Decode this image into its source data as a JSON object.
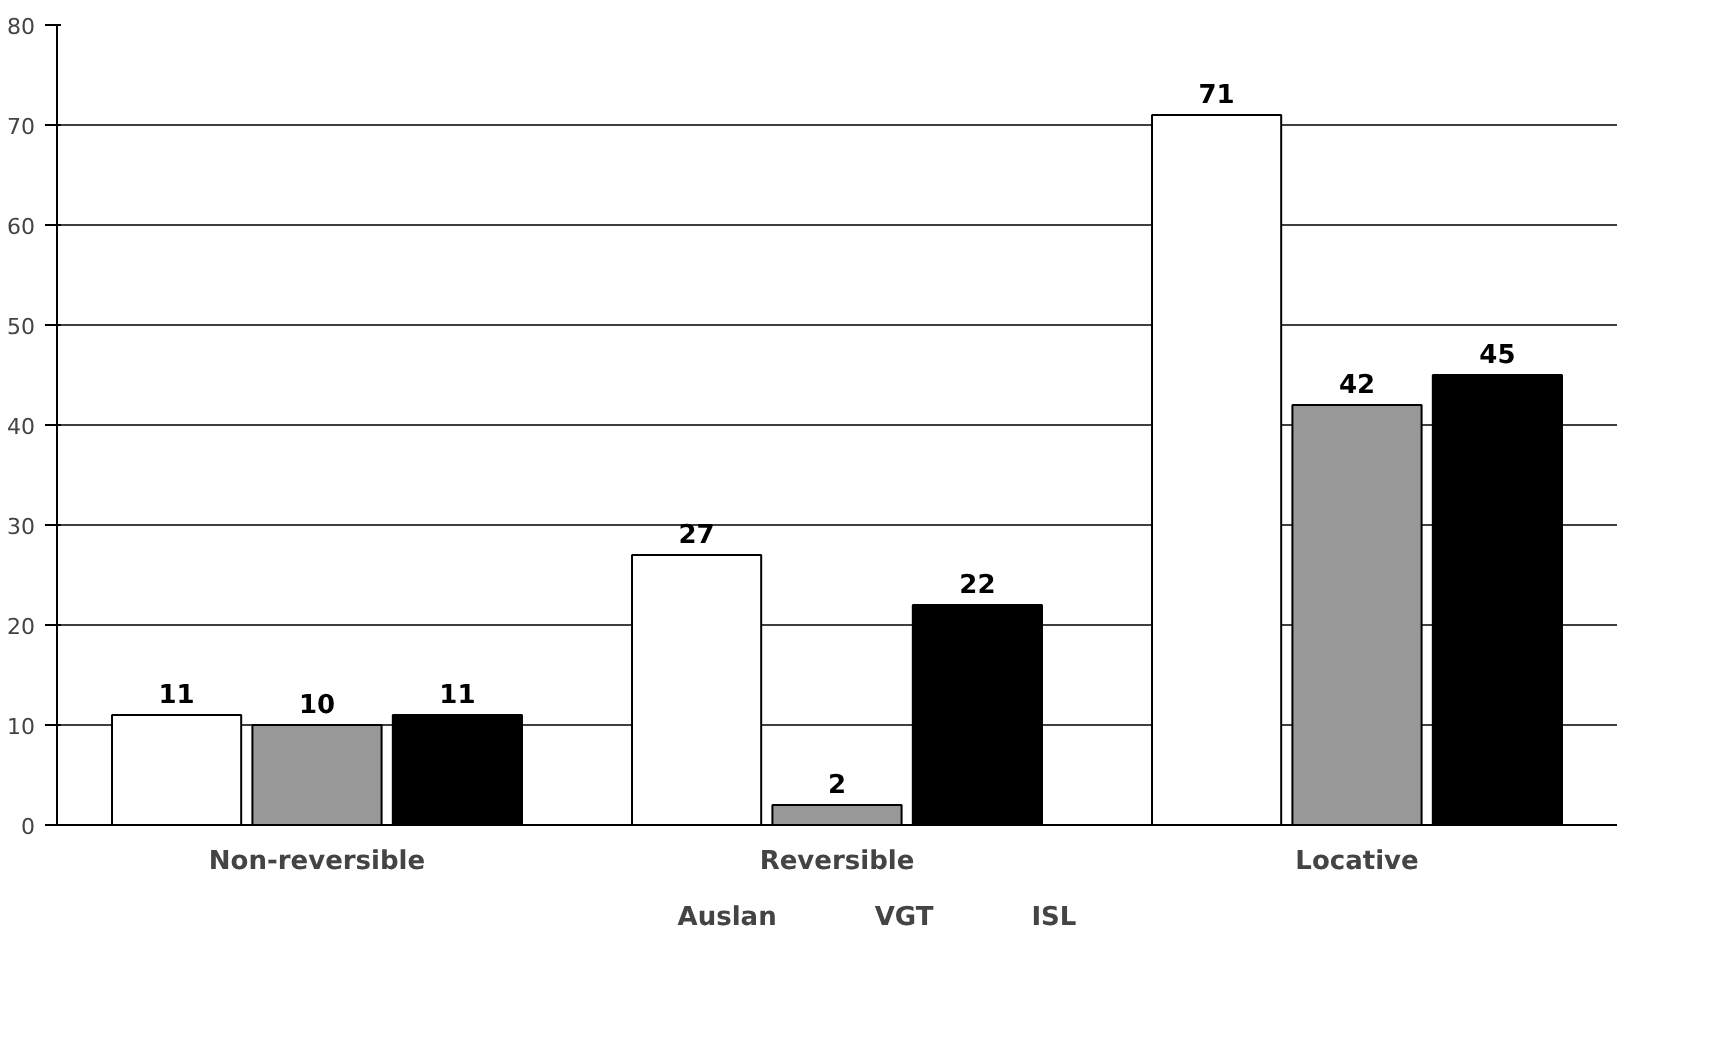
{
  "chart_data": {
    "type": "bar",
    "categories": [
      "Non-reversible",
      "Reversible",
      "Locative"
    ],
    "series": [
      {
        "name": "Auslan",
        "color": "#ffffff",
        "values": [
          11,
          27,
          71
        ]
      },
      {
        "name": "VGT",
        "color": "#999999",
        "values": [
          10,
          2,
          42
        ]
      },
      {
        "name": "ISL",
        "color": "#000000",
        "values": [
          11,
          22,
          45
        ]
      }
    ],
    "ylim": [
      0,
      80
    ],
    "yticks": [
      0,
      10,
      20,
      30,
      40,
      50,
      60,
      70,
      80
    ],
    "grid": "y",
    "legend": "bottom",
    "data_labels": true
  }
}
